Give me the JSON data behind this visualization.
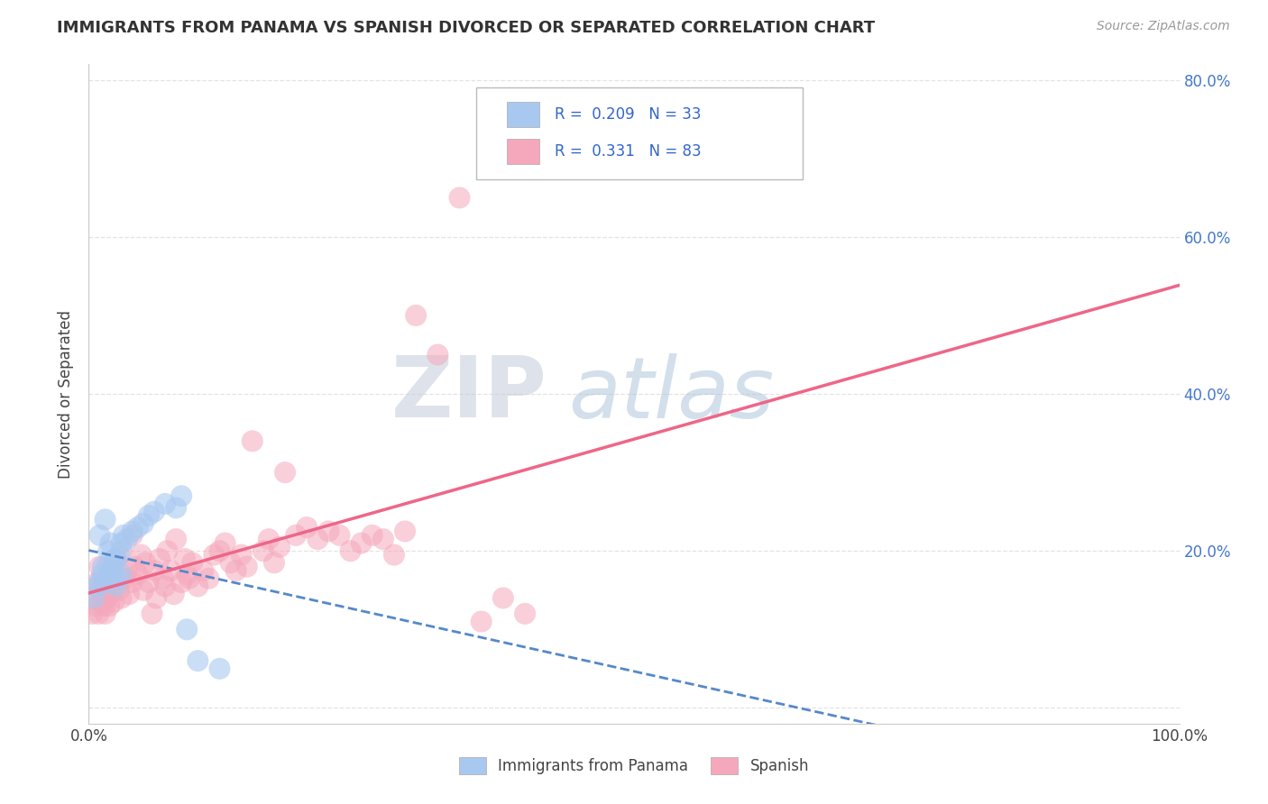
{
  "title": "IMMIGRANTS FROM PANAMA VS SPANISH DIVORCED OR SEPARATED CORRELATION CHART",
  "source_text": "Source: ZipAtlas.com",
  "ylabel": "Divorced or Separated",
  "legend_label_1": "Immigrants from Panama",
  "legend_label_2": "Spanish",
  "R1": 0.209,
  "N1": 33,
  "R2": 0.331,
  "N2": 83,
  "color_blue": "#A8C8F0",
  "color_pink": "#F5A8BC",
  "color_blue_line": "#5588CC",
  "color_pink_line": "#EE6688",
  "xlim": [
    0.0,
    1.0
  ],
  "ylim": [
    -0.02,
    0.82
  ],
  "x_ticks": [
    0.0,
    0.2,
    0.4,
    0.6,
    0.8,
    1.0
  ],
  "x_tick_labels": [
    "0.0%",
    "",
    "",
    "",
    "",
    "100.0%"
  ],
  "y_ticks": [
    0.0,
    0.2,
    0.4,
    0.6,
    0.8
  ],
  "y_tick_labels_right": [
    "",
    "20.0%",
    "40.0%",
    "60.0%",
    "80.0%"
  ],
  "background_color": "#FFFFFF",
  "grid_color": "#DDDDDD",
  "watermark_zip": "ZIP",
  "watermark_atlas": "atlas",
  "blue_scatter_x": [
    0.005,
    0.008,
    0.01,
    0.01,
    0.012,
    0.013,
    0.015,
    0.015,
    0.017,
    0.018,
    0.02,
    0.02,
    0.022,
    0.022,
    0.025,
    0.025,
    0.027,
    0.028,
    0.03,
    0.03,
    0.032,
    0.035,
    0.04,
    0.045,
    0.05,
    0.055,
    0.06,
    0.07,
    0.08,
    0.085,
    0.09,
    0.1,
    0.12
  ],
  "blue_scatter_y": [
    0.14,
    0.155,
    0.16,
    0.22,
    0.17,
    0.18,
    0.16,
    0.24,
    0.18,
    0.2,
    0.17,
    0.21,
    0.175,
    0.185,
    0.155,
    0.19,
    0.165,
    0.195,
    0.17,
    0.21,
    0.22,
    0.215,
    0.225,
    0.23,
    0.235,
    0.245,
    0.25,
    0.26,
    0.255,
    0.27,
    0.1,
    0.06,
    0.05
  ],
  "pink_scatter_x": [
    0.003,
    0.005,
    0.007,
    0.008,
    0.009,
    0.01,
    0.01,
    0.012,
    0.013,
    0.014,
    0.015,
    0.016,
    0.017,
    0.018,
    0.019,
    0.02,
    0.02,
    0.022,
    0.023,
    0.025,
    0.025,
    0.028,
    0.03,
    0.03,
    0.033,
    0.035,
    0.037,
    0.04,
    0.04,
    0.042,
    0.045,
    0.048,
    0.05,
    0.052,
    0.055,
    0.058,
    0.06,
    0.062,
    0.065,
    0.068,
    0.07,
    0.072,
    0.075,
    0.078,
    0.08,
    0.085,
    0.088,
    0.09,
    0.092,
    0.095,
    0.1,
    0.105,
    0.11,
    0.115,
    0.12,
    0.125,
    0.13,
    0.135,
    0.14,
    0.145,
    0.15,
    0.16,
    0.165,
    0.17,
    0.175,
    0.18,
    0.19,
    0.2,
    0.21,
    0.22,
    0.23,
    0.24,
    0.25,
    0.26,
    0.27,
    0.28,
    0.29,
    0.3,
    0.32,
    0.34,
    0.36,
    0.38,
    0.4
  ],
  "pink_scatter_y": [
    0.12,
    0.14,
    0.13,
    0.16,
    0.12,
    0.15,
    0.18,
    0.14,
    0.16,
    0.13,
    0.12,
    0.15,
    0.14,
    0.165,
    0.13,
    0.145,
    0.175,
    0.155,
    0.135,
    0.16,
    0.19,
    0.15,
    0.14,
    0.2,
    0.165,
    0.175,
    0.145,
    0.16,
    0.22,
    0.18,
    0.17,
    0.195,
    0.15,
    0.185,
    0.16,
    0.12,
    0.175,
    0.14,
    0.19,
    0.165,
    0.155,
    0.2,
    0.175,
    0.145,
    0.215,
    0.16,
    0.19,
    0.17,
    0.165,
    0.185,
    0.155,
    0.175,
    0.165,
    0.195,
    0.2,
    0.21,
    0.185,
    0.175,
    0.195,
    0.18,
    0.34,
    0.2,
    0.215,
    0.185,
    0.205,
    0.3,
    0.22,
    0.23,
    0.215,
    0.225,
    0.22,
    0.2,
    0.21,
    0.22,
    0.215,
    0.195,
    0.225,
    0.5,
    0.45,
    0.65,
    0.11,
    0.14,
    0.12
  ]
}
